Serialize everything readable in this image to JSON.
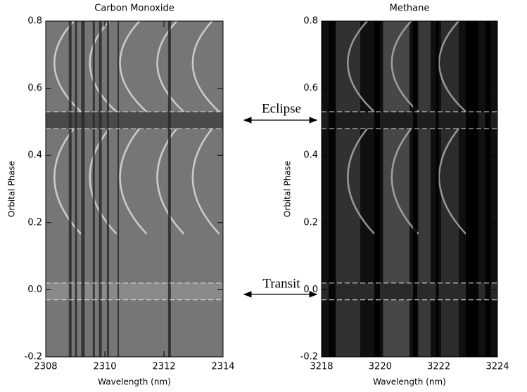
{
  "chart_data": [
    {
      "type": "heatmap",
      "title": "Carbon Monoxide",
      "xlabel": "Wavelength (nm)",
      "ylabel": "Orbital Phase",
      "xlim": [
        2308,
        2314
      ],
      "xticks": [
        2308,
        2310,
        2312,
        2314
      ],
      "ylim": [
        -0.2,
        0.8
      ],
      "yticks": [
        -0.2,
        {
          "value": 0,
          "label": "0.0"
        },
        0.2,
        0.4,
        0.6,
        0.8
      ],
      "hlines": [
        0.53,
        0.48,
        0.02,
        -0.03
      ],
      "style": "gray"
    },
    {
      "type": "heatmap",
      "title": "Methane",
      "xlabel": "Wavelength (nm)",
      "ylabel": "Orbital Phase",
      "xlim": [
        3218,
        3224
      ],
      "xticks": [
        3218,
        3220,
        3222,
        3224
      ],
      "ylim": [
        -0.2,
        0.8
      ],
      "yticks": [
        -0.2,
        {
          "value": 0,
          "label": "0.0"
        },
        0.2,
        0.4,
        0.6,
        0.8
      ],
      "hlines": [
        0.53,
        0.48,
        0.02,
        -0.03
      ],
      "style": "dark"
    }
  ],
  "annotations": [
    "Eclipse",
    "Transit"
  ]
}
